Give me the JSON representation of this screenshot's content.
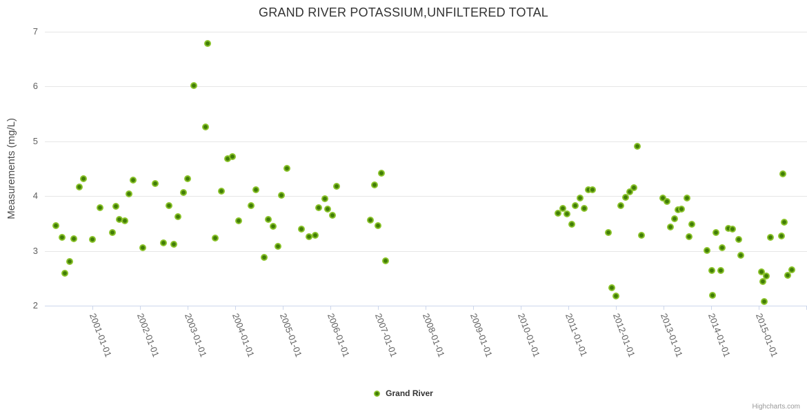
{
  "chart": {
    "title": "GRAND RIVER POTASSIUM,UNFILTERED TOTAL",
    "credits": "Highcharts.com"
  },
  "colors": {
    "point_outer": "#8cc42c",
    "point_inner": "#417d06",
    "gridline": "#e6e6e6",
    "axis_line": "#ccd6eb",
    "axis_label": "#606060"
  },
  "chart_data": {
    "type": "scatter",
    "title": "GRAND RIVER POTASSIUM,UNFILTERED TOTAL",
    "xlabel": "",
    "ylabel": "Measurements (mg/L)",
    "xlim": [
      2000,
      2016
    ],
    "ylim": [
      2,
      7
    ],
    "yticks": [
      2,
      3,
      4,
      5,
      6,
      7
    ],
    "xticks": [
      "2001-01-01",
      "2002-01-01",
      "2003-01-01",
      "2004-01-01",
      "2005-01-01",
      "2006-01-01",
      "2007-01-01",
      "2008-01-01",
      "2009-01-01",
      "2010-01-01",
      "2011-01-01",
      "2012-01-01",
      "2013-01-01",
      "2014-01-01",
      "2015-01-01"
    ],
    "x_unit": "decimal_year",
    "grid": "horizontal-only",
    "legend_position": "bottom-center",
    "series": [
      {
        "name": "Grand River",
        "color": "#8cc42c",
        "points": [
          [
            2000.23,
            3.46
          ],
          [
            2000.36,
            3.25
          ],
          [
            2000.42,
            2.59
          ],
          [
            2000.52,
            2.81
          ],
          [
            2000.61,
            3.22
          ],
          [
            2000.72,
            4.17
          ],
          [
            2000.81,
            4.32
          ],
          [
            2001.0,
            3.21
          ],
          [
            2001.16,
            3.79
          ],
          [
            2001.42,
            3.34
          ],
          [
            2001.49,
            3.81
          ],
          [
            2001.57,
            3.57
          ],
          [
            2001.68,
            3.55
          ],
          [
            2001.77,
            4.04
          ],
          [
            2001.86,
            4.29
          ],
          [
            2002.06,
            3.06
          ],
          [
            2002.32,
            4.23
          ],
          [
            2002.49,
            3.15
          ],
          [
            2002.61,
            3.83
          ],
          [
            2002.71,
            3.12
          ],
          [
            2002.8,
            3.62
          ],
          [
            2002.91,
            4.07
          ],
          [
            2003.0,
            4.32
          ],
          [
            2003.13,
            6.02
          ],
          [
            2003.38,
            5.26
          ],
          [
            2003.42,
            6.79
          ],
          [
            2003.58,
            3.23
          ],
          [
            2003.71,
            4.09
          ],
          [
            2003.84,
            4.68
          ],
          [
            2003.94,
            4.72
          ],
          [
            2004.07,
            3.55
          ],
          [
            2004.33,
            3.83
          ],
          [
            2004.43,
            4.12
          ],
          [
            2004.61,
            2.88
          ],
          [
            2004.7,
            3.57
          ],
          [
            2004.8,
            3.45
          ],
          [
            2004.9,
            3.08
          ],
          [
            2004.97,
            4.02
          ],
          [
            2005.09,
            4.51
          ],
          [
            2005.39,
            3.4
          ],
          [
            2005.55,
            3.26
          ],
          [
            2005.68,
            3.28
          ],
          [
            2005.75,
            3.79
          ],
          [
            2005.88,
            3.95
          ],
          [
            2005.94,
            3.76
          ],
          [
            2006.04,
            3.65
          ],
          [
            2006.13,
            4.18
          ],
          [
            2006.84,
            3.56
          ],
          [
            2006.93,
            4.2
          ],
          [
            2007.0,
            3.46
          ],
          [
            2007.07,
            4.42
          ],
          [
            2007.16,
            2.82
          ],
          [
            2010.78,
            3.69
          ],
          [
            2010.88,
            3.77
          ],
          [
            2010.97,
            3.68
          ],
          [
            2011.07,
            3.49
          ],
          [
            2011.14,
            3.83
          ],
          [
            2011.25,
            3.97
          ],
          [
            2011.33,
            3.78
          ],
          [
            2011.42,
            4.11
          ],
          [
            2011.51,
            4.11
          ],
          [
            2011.84,
            3.34
          ],
          [
            2011.91,
            2.33
          ],
          [
            2012.0,
            2.18
          ],
          [
            2012.1,
            3.83
          ],
          [
            2012.2,
            3.98
          ],
          [
            2012.29,
            4.08
          ],
          [
            2012.38,
            4.15
          ],
          [
            2012.45,
            4.91
          ],
          [
            2012.54,
            3.28
          ],
          [
            2012.99,
            3.96
          ],
          [
            2013.07,
            3.9
          ],
          [
            2013.14,
            3.44
          ],
          [
            2013.23,
            3.59
          ],
          [
            2013.3,
            3.75
          ],
          [
            2013.38,
            3.76
          ],
          [
            2013.49,
            3.96
          ],
          [
            2013.54,
            3.26
          ],
          [
            2013.59,
            3.49
          ],
          [
            2013.91,
            3.01
          ],
          [
            2014.01,
            2.64
          ],
          [
            2014.03,
            2.19
          ],
          [
            2014.1,
            3.33
          ],
          [
            2014.2,
            2.64
          ],
          [
            2014.23,
            3.06
          ],
          [
            2014.36,
            3.41
          ],
          [
            2014.45,
            3.4
          ],
          [
            2014.58,
            3.21
          ],
          [
            2014.62,
            2.92
          ],
          [
            2015.06,
            2.62
          ],
          [
            2015.09,
            2.44
          ],
          [
            2015.12,
            2.08
          ],
          [
            2015.16,
            2.54
          ],
          [
            2015.25,
            3.25
          ],
          [
            2015.48,
            3.27
          ],
          [
            2015.51,
            4.41
          ],
          [
            2015.54,
            3.52
          ],
          [
            2015.61,
            2.55
          ],
          [
            2015.7,
            2.65
          ]
        ]
      }
    ]
  }
}
